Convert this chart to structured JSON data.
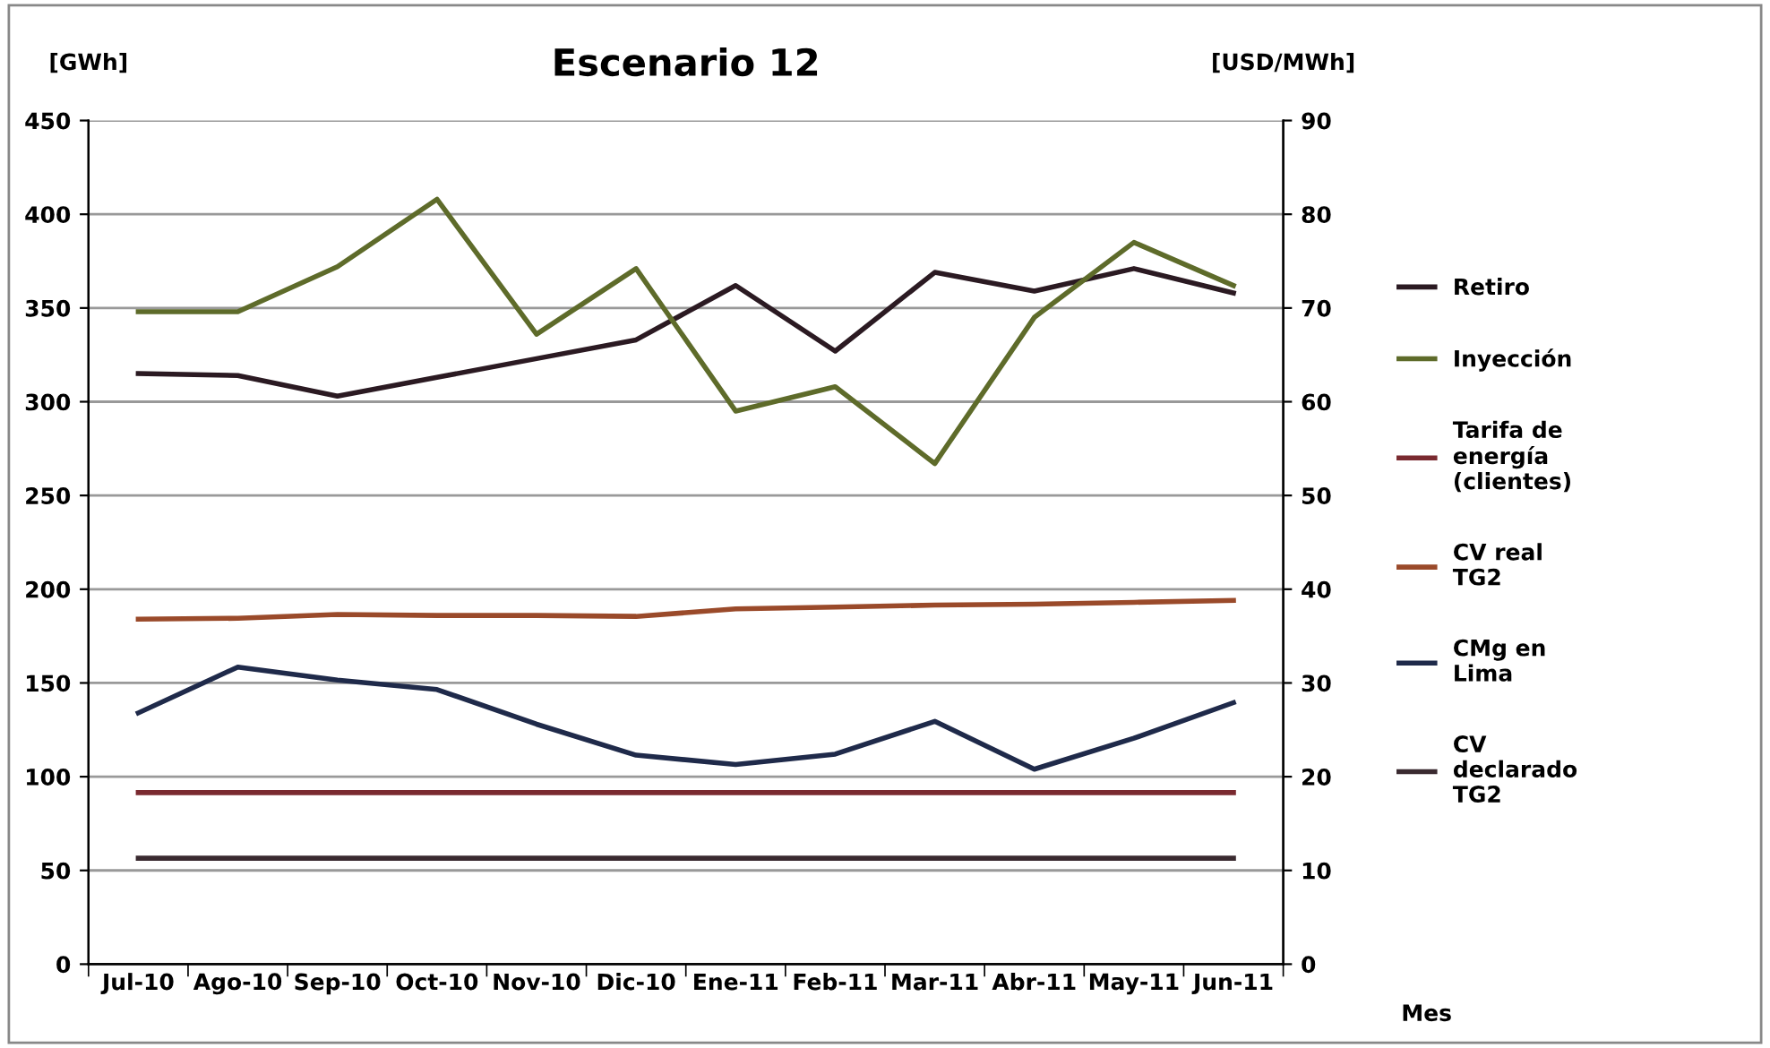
{
  "chart_data": {
    "type": "line",
    "title": "Escenario 12",
    "ylabel": "[GWh]",
    "y2label": "[USD/MWh]",
    "xlabel": "Mes",
    "categories": [
      "Jul-10",
      "Ago-10",
      "Sep-10",
      "Oct-10",
      "Nov-10",
      "Dic-10",
      "Ene-11",
      "Feb-11",
      "Mar-11",
      "Abr-11",
      "May-11",
      "Jun-11"
    ],
    "series": [
      {
        "name": "Retiro",
        "color": "#2b1a22",
        "values": [
          315,
          314,
          303,
          313,
          323,
          333,
          362,
          327,
          369,
          359,
          371,
          358
        ]
      },
      {
        "name": "Inyección",
        "color": "#5e6b2a",
        "values": [
          348,
          348,
          372,
          408,
          336,
          371,
          295,
          308,
          267,
          345,
          385,
          362
        ]
      },
      {
        "name": "Tarifa de\nenergía\n(clientes)",
        "color": "#7a2a30",
        "axis": "y2",
        "values": [
          18.3,
          18.3,
          18.3,
          18.3,
          18.3,
          18.3,
          18.3,
          18.3,
          18.3,
          18.3,
          18.3,
          18.3
        ]
      },
      {
        "name": "CV real\nTG2",
        "color": "#9a4a2a",
        "axis": "y2",
        "values": [
          36.8,
          36.9,
          37.3,
          37.2,
          37.2,
          37.1,
          37.9,
          38.1,
          38.3,
          38.4,
          38.6,
          38.8
        ]
      },
      {
        "name": "CMg en\nLima",
        "color": "#1f2a4a",
        "axis": "y2",
        "values": [
          26.8,
          31.7,
          30.3,
          29.3,
          25.6,
          22.3,
          21.3,
          22.4,
          25.9,
          20.8,
          24.1,
          27.9
        ]
      },
      {
        "name": "CV\ndeclarado\nTG2",
        "color": "#3a2a30",
        "axis": "y2",
        "values": [
          11.3,
          11.3,
          11.3,
          11.3,
          11.3,
          11.3,
          11.3,
          11.3,
          11.3,
          11.3,
          11.3,
          11.3
        ]
      }
    ],
    "ylim": [
      0,
      450
    ],
    "yticks": [
      0,
      50,
      100,
      150,
      200,
      250,
      300,
      350,
      400,
      450
    ],
    "y2lim": [
      0,
      90
    ],
    "y2ticks": [
      0,
      10,
      20,
      30,
      40,
      50,
      60,
      70,
      80,
      90
    ],
    "grid": "y",
    "legend": "right",
    "marker": "none",
    "line_style": "solid"
  }
}
